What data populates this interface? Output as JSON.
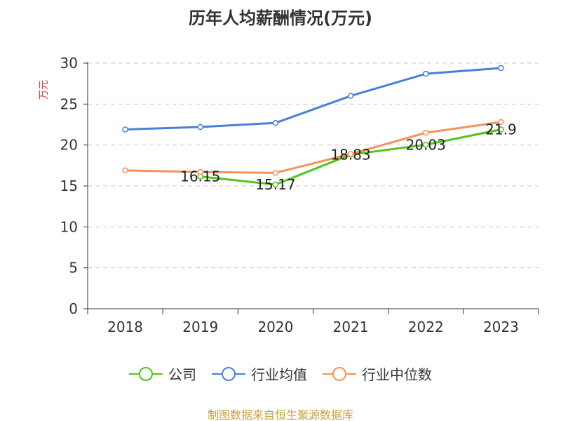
{
  "chart_data": {
    "type": "line",
    "title": "历年人均薪酬情况(万元)",
    "ylabel": "万元",
    "xlabel": "",
    "categories": [
      "2018",
      "2019",
      "2020",
      "2021",
      "2022",
      "2023"
    ],
    "ylim": [
      0,
      30
    ],
    "yticks": [
      "0",
      "5",
      "10",
      "15",
      "20",
      "25",
      "30"
    ],
    "grid": true,
    "legend_position": "bottom",
    "series": [
      {
        "name": "公司",
        "color": "#52c41a",
        "values": [
          null,
          16.15,
          15.17,
          18.83,
          20.03,
          21.9
        ],
        "labels": [
          "",
          "16.15",
          "15.17",
          "18.83",
          "20.03",
          "21.9"
        ]
      },
      {
        "name": "行业均值",
        "color": "#4a7fd6",
        "values": [
          21.9,
          22.2,
          22.7,
          26.0,
          28.7,
          29.4
        ],
        "labels": [
          "",
          "",
          "",
          "",
          "",
          ""
        ]
      },
      {
        "name": "行业中位数",
        "color": "#f4925a",
        "values": [
          16.9,
          16.7,
          16.6,
          18.9,
          21.5,
          22.8
        ],
        "labels": [
          "",
          "",
          "",
          "",
          "",
          ""
        ]
      }
    ]
  },
  "source": "制图数据来自恒生聚源数据库"
}
